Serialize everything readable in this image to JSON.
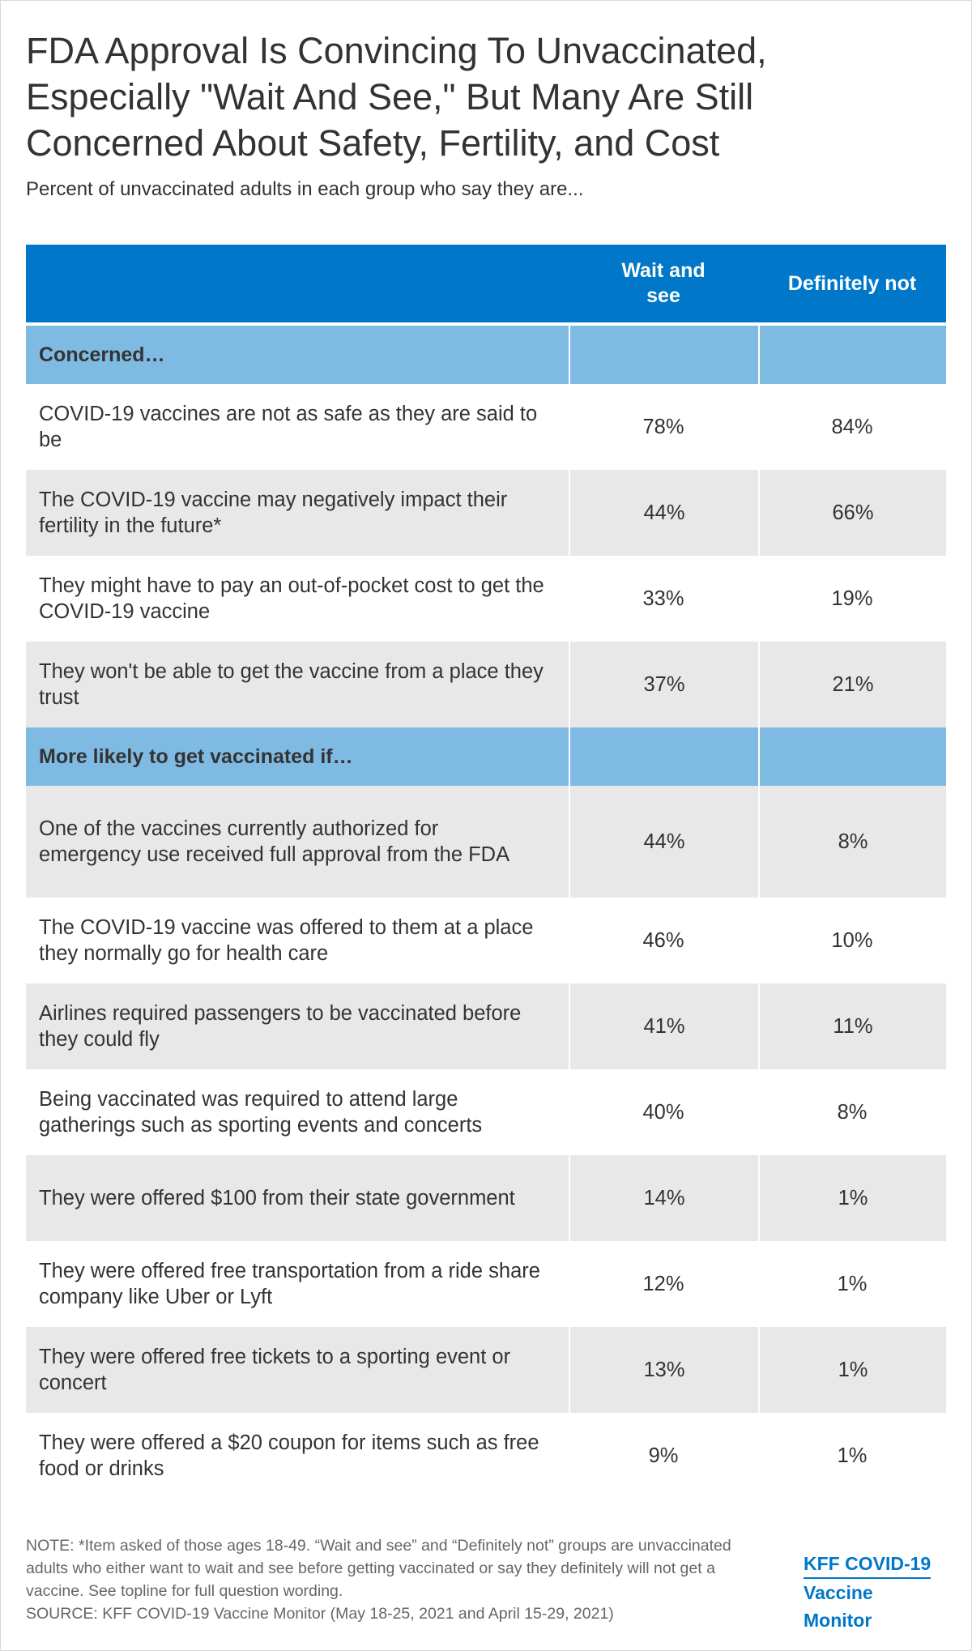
{
  "title": "FDA Approval Is Convincing To Unvaccinated, Especially \"Wait And See,\" But Many Are Still Concerned About Safety, Fertility, and Cost",
  "subtitle": "Percent of unvaccinated adults in each group who say they are...",
  "columns": [
    "",
    "Wait and see",
    "Definitely not"
  ],
  "sections": [
    {
      "heading": "Concerned…",
      "rows": [
        {
          "label": "COVID-19 vaccines are not as safe as they are said to be",
          "wait_and_see": "78%",
          "definitely_not": "84%"
        },
        {
          "label": "The COVID-19 vaccine may negatively impact their fertility in the future*",
          "wait_and_see": "44%",
          "definitely_not": "66%"
        },
        {
          "label": "They might have to pay an out-of-pocket cost to get the COVID-19 vaccine",
          "wait_and_see": "33%",
          "definitely_not": "19%"
        },
        {
          "label": "They won't be able to get the vaccine from a place they trust",
          "wait_and_see": "37%",
          "definitely_not": "21%"
        }
      ]
    },
    {
      "heading": "More likely to get vaccinated if…",
      "rows": [
        {
          "label": "One of the vaccines currently authorized for emergency use received full approval from the FDA",
          "wait_and_see": "44%",
          "definitely_not": "8%"
        },
        {
          "label": "The COVID-19 vaccine was offered to them at a place they normally go for health care",
          "wait_and_see": "46%",
          "definitely_not": "10%"
        },
        {
          "label": "Airlines required passengers to be vaccinated before they could fly",
          "wait_and_see": "41%",
          "definitely_not": "11%"
        },
        {
          "label": "Being vaccinated was required to attend large gatherings such as sporting events and concerts",
          "wait_and_see": "40%",
          "definitely_not": "8%"
        },
        {
          "label": "They were offered $100 from their state government",
          "wait_and_see": "14%",
          "definitely_not": "1%"
        },
        {
          "label": "They were offered free transportation from a ride share company like Uber or Lyft",
          "wait_and_see": "12%",
          "definitely_not": "1%"
        },
        {
          "label": "They were offered free tickets to a sporting event or concert",
          "wait_and_see": "13%",
          "definitely_not": "1%"
        },
        {
          "label": "They were offered a $20 coupon for items such as free food or drinks",
          "wait_and_see": "9%",
          "definitely_not": "1%"
        }
      ]
    }
  ],
  "note": "NOTE: *Item asked of those ages 18-49. “Wait and see” and “Definitely not” groups are unvaccinated adults who either want to wait and see before getting vaccinated or say they definitely will not get a vaccine. See topline for full question wording.",
  "source": "SOURCE: KFF COVID-19 Vaccine Monitor (May 18-25, 2021 and April 15-29, 2021)",
  "logo": {
    "line1": "KFF COVID-19",
    "line2": "Vaccine Monitor"
  },
  "colors": {
    "header": "#0077c8",
    "section": "#7fbae3",
    "alt_row": "#e8e8e8",
    "text": "#333333"
  },
  "chart_data": {
    "type": "table",
    "title": "FDA Approval Is Convincing To Unvaccinated, Especially \"Wait And See,\" But Many Are Still Concerned About Safety, Fertility, and Cost",
    "columns": [
      "Wait and see",
      "Definitely not"
    ],
    "series": [
      {
        "name": "Wait and see",
        "values": [
          78,
          44,
          33,
          37,
          44,
          46,
          41,
          40,
          14,
          12,
          13,
          9
        ]
      },
      {
        "name": "Definitely not",
        "values": [
          84,
          66,
          19,
          21,
          8,
          10,
          11,
          8,
          1,
          1,
          1,
          1
        ]
      }
    ],
    "unit": "%"
  }
}
